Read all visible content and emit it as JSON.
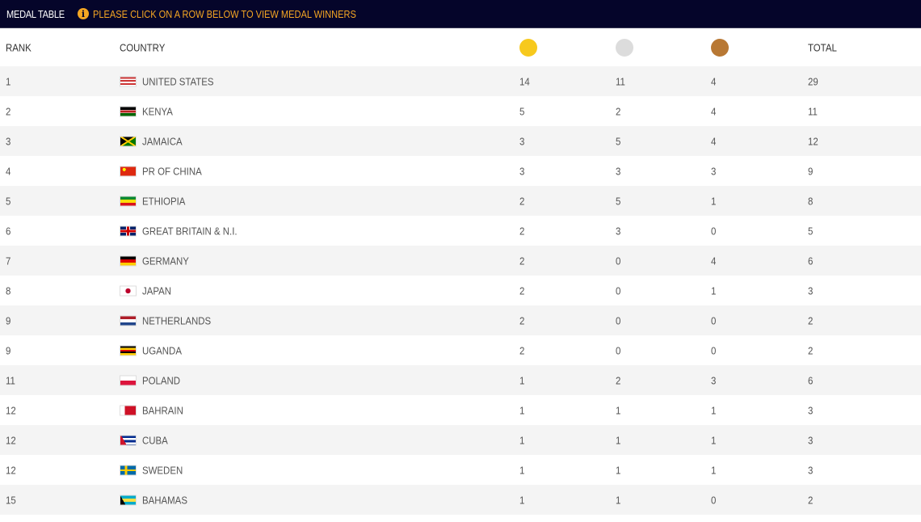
{
  "header": {
    "title": "MEDAL TABLE",
    "hint": "PLEASE CLICK ON A ROW BELOW TO VIEW MEDAL WINNERS",
    "hint_icon": "info-icon"
  },
  "columns": {
    "rank": "RANK",
    "country": "COUNTRY",
    "total": "TOTAL",
    "gold_color": "#f7c91d",
    "silver_color": "#dcdcdc",
    "bronze_color": "#b87834"
  },
  "rows": [
    {
      "rank": "1",
      "country": "UNITED STATES",
      "flag": "us",
      "gold": "14",
      "silver": "11",
      "bronze": "4",
      "total": "29"
    },
    {
      "rank": "2",
      "country": "KENYA",
      "flag": "ke",
      "gold": "5",
      "silver": "2",
      "bronze": "4",
      "total": "11"
    },
    {
      "rank": "3",
      "country": "JAMAICA",
      "flag": "jm",
      "gold": "3",
      "silver": "5",
      "bronze": "4",
      "total": "12"
    },
    {
      "rank": "4",
      "country": "PR OF CHINA",
      "flag": "cn",
      "gold": "3",
      "silver": "3",
      "bronze": "3",
      "total": "9"
    },
    {
      "rank": "5",
      "country": "ETHIOPIA",
      "flag": "et",
      "gold": "2",
      "silver": "5",
      "bronze": "1",
      "total": "8"
    },
    {
      "rank": "6",
      "country": "GREAT BRITAIN & N.I.",
      "flag": "gb",
      "gold": "2",
      "silver": "3",
      "bronze": "0",
      "total": "5"
    },
    {
      "rank": "7",
      "country": "GERMANY",
      "flag": "de",
      "gold": "2",
      "silver": "0",
      "bronze": "4",
      "total": "6"
    },
    {
      "rank": "8",
      "country": "JAPAN",
      "flag": "jp",
      "gold": "2",
      "silver": "0",
      "bronze": "1",
      "total": "3"
    },
    {
      "rank": "9",
      "country": "NETHERLANDS",
      "flag": "nl",
      "gold": "2",
      "silver": "0",
      "bronze": "0",
      "total": "2"
    },
    {
      "rank": "9",
      "country": "UGANDA",
      "flag": "ug",
      "gold": "2",
      "silver": "0",
      "bronze": "0",
      "total": "2"
    },
    {
      "rank": "11",
      "country": "POLAND",
      "flag": "pl",
      "gold": "1",
      "silver": "2",
      "bronze": "3",
      "total": "6"
    },
    {
      "rank": "12",
      "country": "BAHRAIN",
      "flag": "bh",
      "gold": "1",
      "silver": "1",
      "bronze": "1",
      "total": "3"
    },
    {
      "rank": "12",
      "country": "CUBA",
      "flag": "cu",
      "gold": "1",
      "silver": "1",
      "bronze": "1",
      "total": "3"
    },
    {
      "rank": "12",
      "country": "SWEDEN",
      "flag": "se",
      "gold": "1",
      "silver": "1",
      "bronze": "1",
      "total": "3"
    },
    {
      "rank": "15",
      "country": "BAHAMAS",
      "flag": "bs",
      "gold": "1",
      "silver": "1",
      "bronze": "0",
      "total": "2"
    }
  ]
}
